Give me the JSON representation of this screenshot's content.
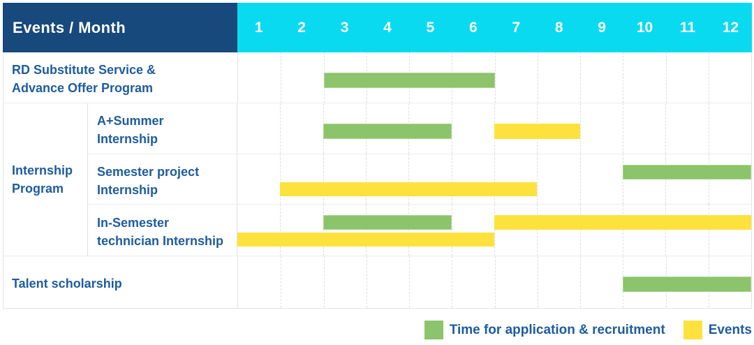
{
  "header": {
    "title": "Events / Month",
    "months": [
      "1",
      "2",
      "3",
      "4",
      "5",
      "6",
      "7",
      "8",
      "9",
      "10",
      "11",
      "12"
    ]
  },
  "group_column": {
    "label": "Internship Program",
    "label_lines": [
      "Internship",
      "Program"
    ]
  },
  "chart_data": {
    "type": "gantt",
    "title": "Events / Month",
    "x_axis_label": "Month",
    "x_categories": [
      1,
      2,
      3,
      4,
      5,
      6,
      7,
      8,
      9,
      10,
      11,
      12
    ],
    "x_range": [
      1,
      12
    ],
    "grid": true,
    "legend_position": "bottom-right",
    "legend": [
      {
        "key": "application",
        "label": "Time for application & recruitment",
        "color": "#8BC46A"
      },
      {
        "key": "event",
        "label": "Events",
        "color": "#FDE23E"
      }
    ],
    "rows": [
      {
        "label": "RD Substitute Service & Advance Offer Program",
        "label_lines": [
          "RD Substitute Service &",
          "Advance Offer Program"
        ],
        "group": null,
        "bars": [
          {
            "type": "application",
            "start_month": 3,
            "end_month": 6,
            "line": "single"
          }
        ]
      },
      {
        "label": "A+Summer Internship",
        "label_lines": [
          "A+Summer",
          "Internship"
        ],
        "group": "Internship Program",
        "bars": [
          {
            "type": "application",
            "start_month": 3,
            "end_month": 5,
            "line": "single"
          },
          {
            "type": "event",
            "start_month": 7,
            "end_month": 8,
            "line": "single"
          }
        ]
      },
      {
        "label": "Semester project Internship",
        "label_lines": [
          "Semester project",
          "Internship"
        ],
        "group": "Internship Program",
        "bars": [
          {
            "type": "application",
            "start_month": 10,
            "end_month": 12,
            "line": "upper"
          },
          {
            "type": "event",
            "start_month": 2,
            "end_month": 7,
            "line": "lower"
          }
        ]
      },
      {
        "label": "In-Semester technician Internship",
        "label_lines": [
          "In-Semester",
          "technician Internship"
        ],
        "group": "Internship Program",
        "bars": [
          {
            "type": "application",
            "start_month": 3,
            "end_month": 5,
            "line": "upper"
          },
          {
            "type": "event",
            "start_month": 7,
            "end_month": 12,
            "line": "upper"
          },
          {
            "type": "event",
            "start_month": 1,
            "end_month": 6,
            "line": "lower"
          }
        ]
      },
      {
        "label": "Talent scholarship",
        "label_lines": [
          "Talent scholarship"
        ],
        "group": null,
        "bars": [
          {
            "type": "application",
            "start_month": 10,
            "end_month": 12,
            "line": "single"
          }
        ]
      }
    ]
  },
  "colors": {
    "header_navy": "#17497C",
    "header_cyan": "#0ADAF0",
    "label_text_blue": "#1D5C9E",
    "application_green": "#8BC46A",
    "event_yellow": "#FDE23E",
    "grid_line": "#DEDEDE",
    "row_border": "#ECECEC",
    "table_border": "#E3E3E3",
    "header_text": "#FFFFFF"
  }
}
